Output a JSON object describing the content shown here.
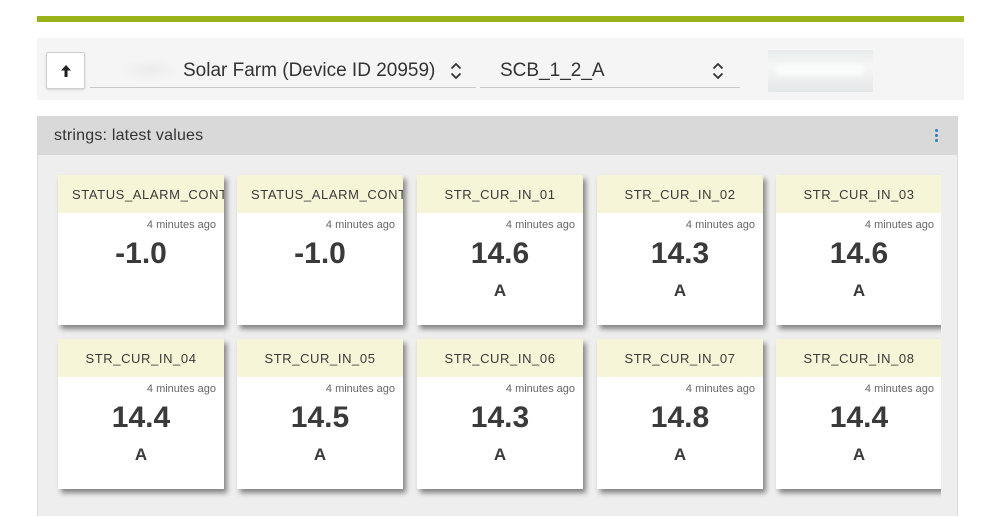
{
  "colors": {
    "accent": "#99b21a",
    "tile_header": "#f7f5d7",
    "kebab": "#2f7dc4"
  },
  "toolbar": {
    "up_icon": "arrow-up-icon",
    "device_select": {
      "value": "Solar Farm (Device ID 20959)",
      "icon": "unfold-chevrons-icon"
    },
    "sensor_select": {
      "value": "SCB_1_2_A",
      "icon": "unfold-chevrons-icon"
    }
  },
  "panel": {
    "title": "strings: latest values",
    "menu_icon": "more-vertical-icon",
    "tiles": [
      {
        "name": "STATUS_ALARM_CONTACT",
        "time": "4 minutes ago",
        "value": "-1.0",
        "unit": ""
      },
      {
        "name": "STATUS_ALARM_CONTACT",
        "time": "4 minutes ago",
        "value": "-1.0",
        "unit": ""
      },
      {
        "name": "STR_CUR_IN_01",
        "time": "4 minutes ago",
        "value": "14.6",
        "unit": "A"
      },
      {
        "name": "STR_CUR_IN_02",
        "time": "4 minutes ago",
        "value": "14.3",
        "unit": "A"
      },
      {
        "name": "STR_CUR_IN_03",
        "time": "4 minutes ago",
        "value": "14.6",
        "unit": "A"
      },
      {
        "name": "STR_CUR_IN_04",
        "time": "4 minutes ago",
        "value": "14.4",
        "unit": "A"
      },
      {
        "name": "STR_CUR_IN_05",
        "time": "4 minutes ago",
        "value": "14.5",
        "unit": "A"
      },
      {
        "name": "STR_CUR_IN_06",
        "time": "4 minutes ago",
        "value": "14.3",
        "unit": "A"
      },
      {
        "name": "STR_CUR_IN_07",
        "time": "4 minutes ago",
        "value": "14.8",
        "unit": "A"
      },
      {
        "name": "STR_CUR_IN_08",
        "time": "4 minutes ago",
        "value": "14.4",
        "unit": "A"
      }
    ]
  }
}
